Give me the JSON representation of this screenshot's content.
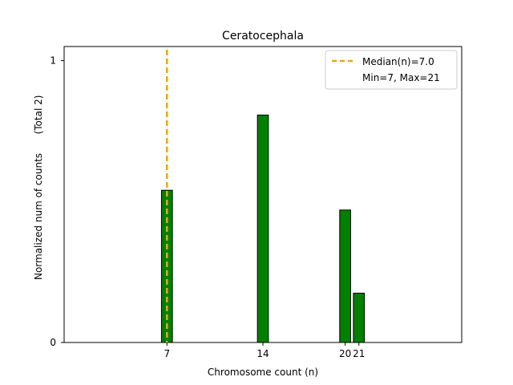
{
  "chart_data": {
    "type": "bar",
    "title": "Ceratocephala",
    "xlabel": "Chromosome count (n)",
    "ylabel_left": "Normalized num of counts",
    "ylabel_right": "(Total 2)",
    "xlim": [
      -0.5,
      28.5
    ],
    "ylim": [
      0,
      1.05
    ],
    "x_ticks": [
      7,
      14,
      20,
      21
    ],
    "y_ticks": [
      {
        "value": 0,
        "label": "0"
      },
      {
        "value": 1,
        "label": "1"
      }
    ],
    "bars": [
      {
        "x": 7,
        "value": 0.54
      },
      {
        "x": 14,
        "value": 0.807
      },
      {
        "x": 20,
        "value": 0.47
      },
      {
        "x": 21,
        "value": 0.175
      }
    ],
    "bar_width": 0.8,
    "bar_color": "#008000",
    "bar_edge_color": "#000000",
    "median_line": {
      "x": 7,
      "color": "#e6a817"
    },
    "legend": {
      "position": "top-right",
      "entries": [
        "Median(n)=7.0",
        "Min=7, Max=21"
      ]
    }
  }
}
